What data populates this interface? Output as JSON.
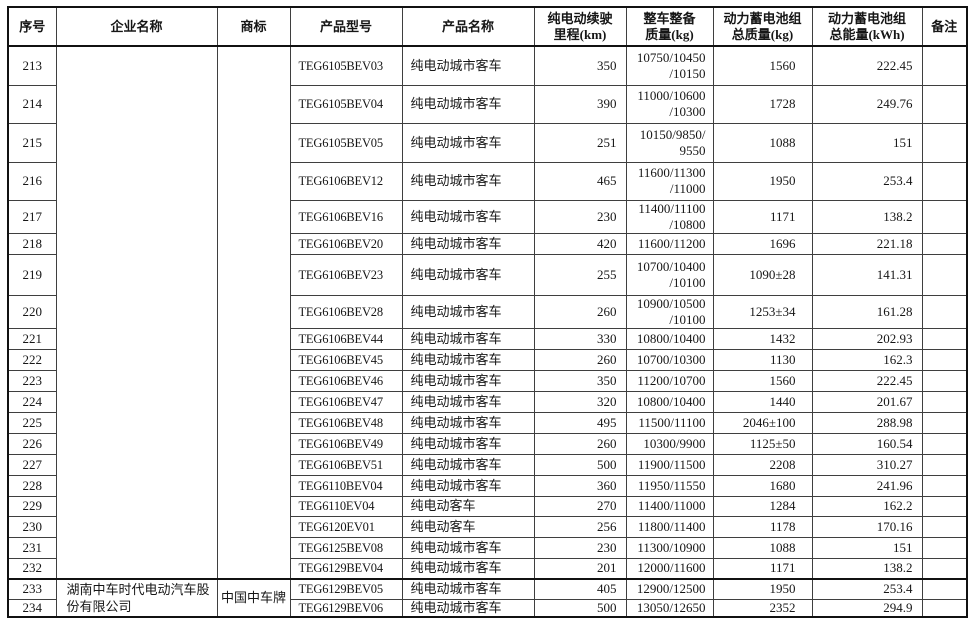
{
  "table": {
    "headers": [
      "序号",
      "企业名称",
      "商标",
      "产品型号",
      "产品名称",
      "纯电动续驶\n里程(km)",
      "整车整备\n质量(kg)",
      "动力蓄电池组\n总质量(kg)",
      "动力蓄电池组\n总能量(kWh)",
      "备注"
    ],
    "company_blocks": [
      {
        "company": "",
        "brand": "",
        "row_span": 20
      },
      {
        "company": "湖南中车时代电动汽车股份有限公司",
        "brand": "中国中车牌",
        "row_span": 2
      }
    ],
    "rows": [
      {
        "no": "213",
        "model": "TEG6105BEV03",
        "name": "纯电动城市客车",
        "range": "350",
        "curb": "10750/10450\n/10150",
        "batt_mass": "1560",
        "batt_energy": "222.45",
        "remark": ""
      },
      {
        "no": "214",
        "model": "TEG6105BEV04",
        "name": "纯电动城市客车",
        "range": "390",
        "curb": "11000/10600\n/10300",
        "batt_mass": "1728",
        "batt_energy": "249.76",
        "remark": ""
      },
      {
        "no": "215",
        "model": "TEG6105BEV05",
        "name": "纯电动城市客车",
        "range": "251",
        "curb": "10150/9850/\n9550",
        "batt_mass": "1088",
        "batt_energy": "151",
        "remark": ""
      },
      {
        "no": "216",
        "model": "TEG6106BEV12",
        "name": "纯电动城市客车",
        "range": "465",
        "curb": "11600/11300\n/11000",
        "batt_mass": "1950",
        "batt_energy": "253.4",
        "remark": ""
      },
      {
        "no": "217",
        "model": "TEG6106BEV16",
        "name": "纯电动城市客车",
        "range": "230",
        "curb": "11400/11100\n/10800",
        "batt_mass": "1171",
        "batt_energy": "138.2",
        "remark": ""
      },
      {
        "no": "218",
        "model": "TEG6106BEV20",
        "name": "纯电动城市客车",
        "range": "420",
        "curb": "11600/11200",
        "batt_mass": "1696",
        "batt_energy": "221.18",
        "remark": ""
      },
      {
        "no": "219",
        "model": "TEG6106BEV23",
        "name": "纯电动城市客车",
        "range": "255",
        "curb": "10700/10400\n/10100",
        "batt_mass": "1090±28",
        "batt_energy": "141.31",
        "remark": ""
      },
      {
        "no": "220",
        "model": "TEG6106BEV28",
        "name": "纯电动城市客车",
        "range": "260",
        "curb": "10900/10500\n/10100",
        "batt_mass": "1253±34",
        "batt_energy": "161.28",
        "remark": ""
      },
      {
        "no": "221",
        "model": "TEG6106BEV44",
        "name": "纯电动城市客车",
        "range": "330",
        "curb": "10800/10400",
        "batt_mass": "1432",
        "batt_energy": "202.93",
        "remark": ""
      },
      {
        "no": "222",
        "model": "TEG6106BEV45",
        "name": "纯电动城市客车",
        "range": "260",
        "curb": "10700/10300",
        "batt_mass": "1130",
        "batt_energy": "162.3",
        "remark": ""
      },
      {
        "no": "223",
        "model": "TEG6106BEV46",
        "name": "纯电动城市客车",
        "range": "350",
        "curb": "11200/10700",
        "batt_mass": "1560",
        "batt_energy": "222.45",
        "remark": ""
      },
      {
        "no": "224",
        "model": "TEG6106BEV47",
        "name": "纯电动城市客车",
        "range": "320",
        "curb": "10800/10400",
        "batt_mass": "1440",
        "batt_energy": "201.67",
        "remark": ""
      },
      {
        "no": "225",
        "model": "TEG6106BEV48",
        "name": "纯电动城市客车",
        "range": "495",
        "curb": "11500/11100",
        "batt_mass": "2046±100",
        "batt_energy": "288.98",
        "remark": ""
      },
      {
        "no": "226",
        "model": "TEG6106BEV49",
        "name": "纯电动城市客车",
        "range": "260",
        "curb": "10300/9900",
        "batt_mass": "1125±50",
        "batt_energy": "160.54",
        "remark": ""
      },
      {
        "no": "227",
        "model": "TEG6106BEV51",
        "name": "纯电动城市客车",
        "range": "500",
        "curb": "11900/11500",
        "batt_mass": "2208",
        "batt_energy": "310.27",
        "remark": ""
      },
      {
        "no": "228",
        "model": "TEG6110BEV04",
        "name": "纯电动城市客车",
        "range": "360",
        "curb": "11950/11550",
        "batt_mass": "1680",
        "batt_energy": "241.96",
        "remark": ""
      },
      {
        "no": "229",
        "model": "TEG6110EV04",
        "name": "纯电动客车",
        "range": "270",
        "curb": "11400/11000",
        "batt_mass": "1284",
        "batt_energy": "162.2",
        "remark": ""
      },
      {
        "no": "230",
        "model": "TEG6120EV01",
        "name": "纯电动客车",
        "range": "256",
        "curb": "11800/11400",
        "batt_mass": "1178",
        "batt_energy": "170.16",
        "remark": ""
      },
      {
        "no": "231",
        "model": "TEG6125BEV08",
        "name": "纯电动城市客车",
        "range": "230",
        "curb": "11300/10900",
        "batt_mass": "1088",
        "batt_energy": "151",
        "remark": ""
      },
      {
        "no": "232",
        "model": "TEG6129BEV04",
        "name": "纯电动城市客车",
        "range": "201",
        "curb": "12000/11600",
        "batt_mass": "1171",
        "batt_energy": "138.2",
        "remark": ""
      },
      {
        "no": "233",
        "model": "TEG6129BEV05",
        "name": "纯电动城市客车",
        "range": "405",
        "curb": "12900/12500",
        "batt_mass": "1950",
        "batt_energy": "253.4",
        "remark": ""
      },
      {
        "no": "234",
        "model": "TEG6129BEV06",
        "name": "纯电动城市客车",
        "range": "500",
        "curb": "13050/12650",
        "batt_mass": "2352",
        "batt_energy": "294.9",
        "remark": ""
      }
    ]
  }
}
